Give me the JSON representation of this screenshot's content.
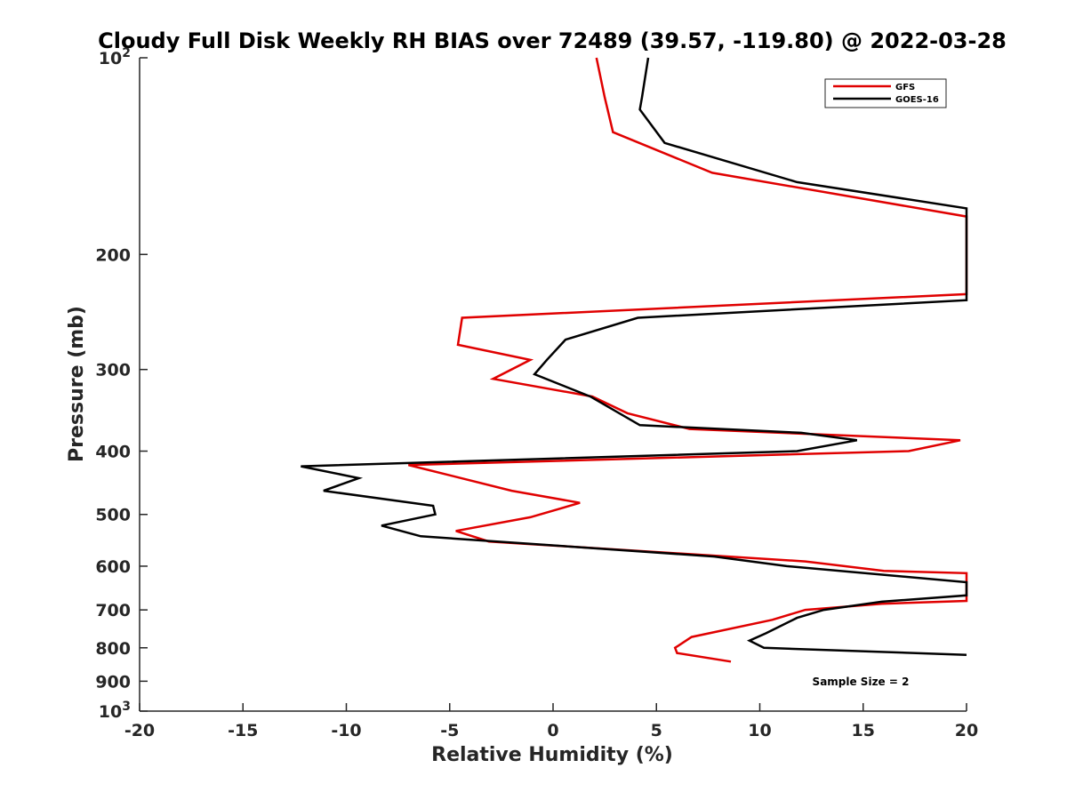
{
  "chart_data": {
    "type": "line",
    "title": "Cloudy Full Disk Weekly RH BIAS over 72489 (39.57, -119.80) @ 2022-03-28",
    "xlabel": "Relative Humidity (%)",
    "ylabel": "Pressure (mb)",
    "xlim": [
      -20,
      20
    ],
    "ylim": [
      100,
      1000
    ],
    "y_scale": "log",
    "y_reversed": true,
    "grid": false,
    "legend_position": "top-right",
    "x_ticks": [
      -20,
      -15,
      -10,
      -5,
      0,
      5,
      10,
      15,
      20
    ],
    "x_tick_labels": [
      "-20",
      "-15",
      "-10",
      "-5",
      "0",
      "5",
      "10",
      "15",
      "20"
    ],
    "y_ticks": [
      100,
      200,
      300,
      400,
      500,
      600,
      700,
      800,
      900,
      1000
    ],
    "y_tick_labels": [
      {
        "base": "10",
        "exp": "2"
      },
      {
        "base": "200",
        "exp": ""
      },
      {
        "base": "300",
        "exp": ""
      },
      {
        "base": "400",
        "exp": ""
      },
      {
        "base": "500",
        "exp": ""
      },
      {
        "base": "600",
        "exp": ""
      },
      {
        "base": "700",
        "exp": ""
      },
      {
        "base": "800",
        "exp": ""
      },
      {
        "base": "900",
        "exp": ""
      },
      {
        "base": "10",
        "exp": "3"
      }
    ],
    "series": [
      {
        "name": "GFS",
        "color": "#e00000",
        "points": [
          {
            "x": 2.1,
            "y": 100
          },
          {
            "x": 2.5,
            "y": 115
          },
          {
            "x": 2.9,
            "y": 130
          },
          {
            "x": 7.7,
            "y": 150
          },
          {
            "x": 20.0,
            "y": 175
          },
          {
            "x": 20.0,
            "y": 230
          },
          {
            "x": -4.4,
            "y": 250
          },
          {
            "x": -4.6,
            "y": 275
          },
          {
            "x": -1.1,
            "y": 290
          },
          {
            "x": -2.9,
            "y": 310
          },
          {
            "x": 1.9,
            "y": 330
          },
          {
            "x": 3.6,
            "y": 350
          },
          {
            "x": 6.6,
            "y": 370
          },
          {
            "x": 19.7,
            "y": 385
          },
          {
            "x": 17.2,
            "y": 400
          },
          {
            "x": -7.0,
            "y": 420
          },
          {
            "x": -2.0,
            "y": 460
          },
          {
            "x": 1.3,
            "y": 480
          },
          {
            "x": -1.1,
            "y": 505
          },
          {
            "x": -4.7,
            "y": 530
          },
          {
            "x": -3.1,
            "y": 550
          },
          {
            "x": 12.2,
            "y": 590
          },
          {
            "x": 16.0,
            "y": 610
          },
          {
            "x": 20.0,
            "y": 615
          },
          {
            "x": 20.0,
            "y": 678
          },
          {
            "x": 15.9,
            "y": 685
          },
          {
            "x": 12.2,
            "y": 700
          },
          {
            "x": 10.6,
            "y": 725
          },
          {
            "x": 6.7,
            "y": 770
          },
          {
            "x": 5.9,
            "y": 800
          },
          {
            "x": 6.0,
            "y": 815
          },
          {
            "x": 8.6,
            "y": 840
          }
        ]
      },
      {
        "name": "GOES-16",
        "color": "#000000",
        "points": [
          {
            "x": 4.6,
            "y": 100
          },
          {
            "x": 4.3,
            "y": 115
          },
          {
            "x": 4.2,
            "y": 120
          },
          {
            "x": 5.4,
            "y": 135
          },
          {
            "x": 11.8,
            "y": 155
          },
          {
            "x": 20.0,
            "y": 170
          },
          {
            "x": 20.0,
            "y": 235
          },
          {
            "x": 4.1,
            "y": 250
          },
          {
            "x": 0.6,
            "y": 270
          },
          {
            "x": -0.3,
            "y": 290
          },
          {
            "x": -0.9,
            "y": 305
          },
          {
            "x": 1.8,
            "y": 330
          },
          {
            "x": 4.2,
            "y": 365
          },
          {
            "x": 12.0,
            "y": 375
          },
          {
            "x": 14.7,
            "y": 385
          },
          {
            "x": 11.8,
            "y": 400
          },
          {
            "x": -12.2,
            "y": 422
          },
          {
            "x": -9.4,
            "y": 440
          },
          {
            "x": -11.1,
            "y": 460
          },
          {
            "x": -5.8,
            "y": 485
          },
          {
            "x": -5.7,
            "y": 500
          },
          {
            "x": -8.3,
            "y": 520
          },
          {
            "x": -6.4,
            "y": 540
          },
          {
            "x": 7.8,
            "y": 580
          },
          {
            "x": 11.3,
            "y": 600
          },
          {
            "x": 20.0,
            "y": 635
          },
          {
            "x": 20.0,
            "y": 665
          },
          {
            "x": 15.9,
            "y": 680
          },
          {
            "x": 13.1,
            "y": 700
          },
          {
            "x": 11.8,
            "y": 720
          },
          {
            "x": 10.3,
            "y": 760
          },
          {
            "x": 9.5,
            "y": 780
          },
          {
            "x": 10.2,
            "y": 800
          },
          {
            "x": 20.0,
            "y": 820
          }
        ]
      }
    ],
    "annotation": "Sample Size = 2"
  }
}
